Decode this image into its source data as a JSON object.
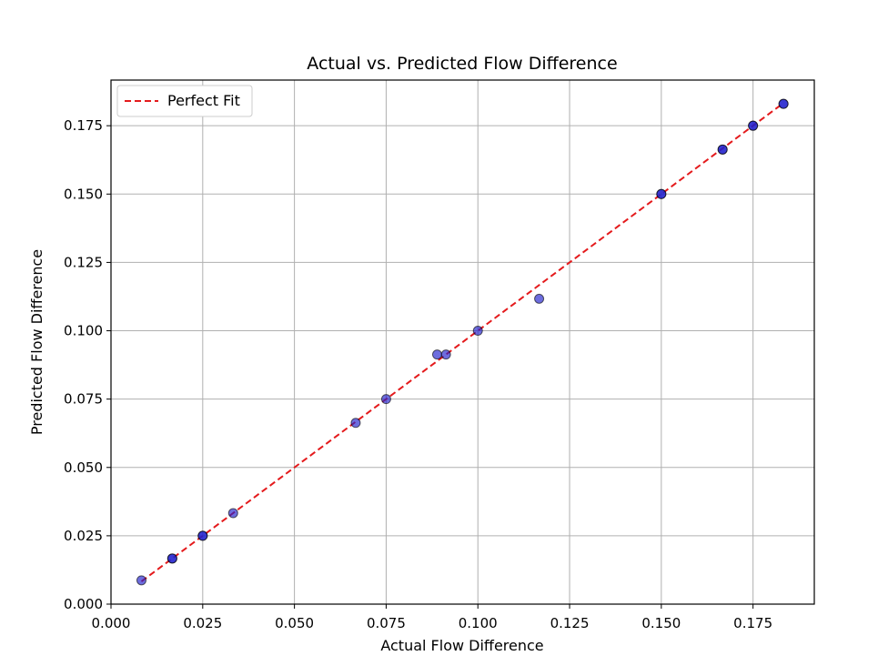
{
  "chart_data": {
    "type": "scatter",
    "title": "Actual vs. Predicted Flow Difference",
    "xlabel": "Actual Flow Difference",
    "ylabel": "Predicted Flow Difference",
    "xlim": [
      0.0,
      0.1917
    ],
    "ylim": [
      0.0,
      0.1917
    ],
    "grid": true,
    "legend_placement": "top-left",
    "xticks": [
      0.0,
      0.025,
      0.05,
      0.075,
      0.1,
      0.125,
      0.15,
      0.175
    ],
    "yticks": [
      0.0,
      0.025,
      0.05,
      0.075,
      0.1,
      0.125,
      0.15,
      0.175
    ],
    "xtick_labels": [
      "0.000",
      "0.025",
      "0.050",
      "0.075",
      "0.100",
      "0.125",
      "0.150",
      "0.175"
    ],
    "ytick_labels": [
      "0.000",
      "0.025",
      "0.050",
      "0.075",
      "0.100",
      "0.125",
      "0.150",
      "0.175"
    ],
    "points": [
      {
        "x": 0.0083,
        "y": 0.0087
      },
      {
        "x": 0.0167,
        "y": 0.0167
      },
      {
        "x": 0.0167,
        "y": 0.0167
      },
      {
        "x": 0.025,
        "y": 0.025
      },
      {
        "x": 0.025,
        "y": 0.025
      },
      {
        "x": 0.0333,
        "y": 0.0333
      },
      {
        "x": 0.0667,
        "y": 0.0663
      },
      {
        "x": 0.075,
        "y": 0.075
      },
      {
        "x": 0.0889,
        "y": 0.0913
      },
      {
        "x": 0.0913,
        "y": 0.0913
      },
      {
        "x": 0.1,
        "y": 0.1
      },
      {
        "x": 0.1167,
        "y": 0.1117
      },
      {
        "x": 0.15,
        "y": 0.15
      },
      {
        "x": 0.15,
        "y": 0.15
      },
      {
        "x": 0.1667,
        "y": 0.1663
      },
      {
        "x": 0.1667,
        "y": 0.1663
      },
      {
        "x": 0.175,
        "y": 0.175
      },
      {
        "x": 0.175,
        "y": 0.175
      },
      {
        "x": 0.1833,
        "y": 0.183
      },
      {
        "x": 0.1833,
        "y": 0.183
      }
    ],
    "fit_line": {
      "name": "Perfect Fit",
      "x": [
        0.0083,
        0.1833
      ],
      "y": [
        0.0083,
        0.1833
      ]
    },
    "colors": {
      "points_fill": "#1f1fcc",
      "points_edge": "#000000",
      "fit_line": "#e41a1c",
      "grid": "#b0b0b0"
    }
  }
}
